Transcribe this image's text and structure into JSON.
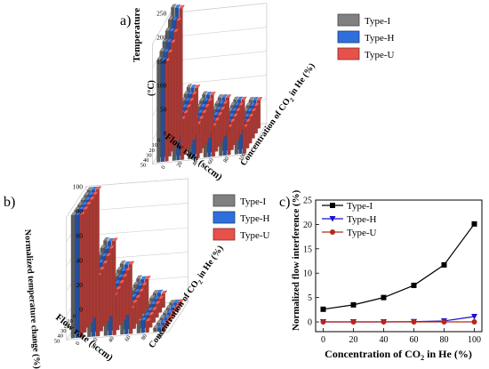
{
  "panels": {
    "a": {
      "label": "a)",
      "ylabel": "Temperature (°C)",
      "xlabel": "Flow rate (sccm)",
      "zlabel": "Concentration of CO2 in He (%)",
      "z_ticks": [
        "0",
        "50",
        "100",
        "150",
        "200",
        "250"
      ],
      "flow_ticks": [
        "0",
        "10",
        "20",
        "30",
        "40",
        "50"
      ],
      "conc_ticks": [
        "0",
        "20",
        "40",
        "60",
        "80",
        "100"
      ],
      "legend": [
        "Type-I",
        "Type-H",
        "Type-U"
      ]
    },
    "b": {
      "label": "b)",
      "ylabel": "Normalized temperature change (%)",
      "xlabel": "Flow rate (sccm)",
      "zlabel": "Concentration of CO2 in He (%)",
      "z_ticks": [
        "0",
        "20",
        "40",
        "60",
        "80",
        "100"
      ],
      "flow_ticks": [
        "0",
        "10",
        "20",
        "30",
        "40",
        "50"
      ],
      "conc_ticks": [
        "0",
        "20",
        "40",
        "60",
        "80",
        "100"
      ],
      "legend": [
        "Type-I",
        "Type-H",
        "Type-U"
      ]
    },
    "c": {
      "label": "c)",
      "ylabel": "Normalized flow interference (%)",
      "xlabel": "Concentration of CO2 in He (%)",
      "legend": [
        "Type-I",
        "Type-H",
        "Type-U"
      ]
    }
  },
  "colors": {
    "Type-I": "#808080",
    "Type-H": "#2f6fdc",
    "Type-U": "#e8504a"
  },
  "chart_data": [
    {
      "type": "bar",
      "title": "",
      "xlabel": "Flow rate (sccm)",
      "ylabel": "Temperature (°C)",
      "zlabel": "Concentration of CO2 in He (%)",
      "flow_rates": [
        0,
        10,
        20,
        30,
        40,
        50
      ],
      "concentrations": [
        0,
        20,
        40,
        60,
        80,
        100
      ],
      "zlim": [
        0,
        250
      ],
      "series": [
        {
          "name": "Type-I",
          "values": [
            [
              270,
              255,
              242,
              230,
              220,
              212
            ],
            [
              100,
              96,
              93,
              90,
              88,
              86
            ],
            [
              82,
              79,
              77,
              75,
              73,
              72
            ],
            [
              72,
              70,
              68,
              67,
              66,
              65
            ],
            [
              64,
              63,
              62,
              61,
              60,
              59
            ],
            [
              60,
              59,
              58,
              57,
              57,
              56
            ]
          ]
        },
        {
          "name": "Type-H",
          "values": [
            [
              268,
              253,
              240,
              228,
              218,
              210
            ],
            [
              98,
              95,
              92,
              89,
              87,
              85
            ],
            [
              80,
              78,
              76,
              74,
              72,
              71
            ],
            [
              71,
              69,
              67,
              66,
              65,
              64
            ],
            [
              63,
              62,
              61,
              60,
              59,
              58
            ],
            [
              59,
              58,
              57,
              56,
              56,
              55
            ]
          ]
        },
        {
          "name": "Type-U",
          "values": [
            [
              266,
              251,
              238,
              226,
              216,
              208
            ],
            [
              97,
              94,
              91,
              88,
              86,
              84
            ],
            [
              79,
              77,
              75,
              73,
              71,
              70
            ],
            [
              70,
              68,
              66,
              65,
              64,
              63
            ],
            [
              62,
              61,
              60,
              59,
              58,
              57
            ],
            [
              58,
              57,
              56,
              55,
              55,
              54
            ]
          ]
        }
      ]
    },
    {
      "type": "bar",
      "title": "",
      "xlabel": "Flow rate (sccm)",
      "ylabel": "Normalized temperature change (%)",
      "zlabel": "Concentration of CO2 in He (%)",
      "flow_rates": [
        0,
        10,
        20,
        30,
        40,
        50
      ],
      "concentrations": [
        0,
        20,
        40,
        60,
        80,
        100
      ],
      "zlim": [
        0,
        100
      ],
      "series": [
        {
          "name": "Type-I",
          "values": [
            [
              100,
              100,
              100,
              100,
              100,
              100
            ],
            [
              58,
              56,
              54,
              52,
              51,
              50
            ],
            [
              38,
              37,
              36,
              35,
              34,
              33
            ],
            [
              25,
              24,
              23,
              22,
              22,
              21
            ],
            [
              12,
              12,
              11,
              11,
              10,
              10
            ],
            [
              3,
              3,
              3,
              3,
              3,
              3
            ]
          ]
        },
        {
          "name": "Type-H",
          "values": [
            [
              100,
              100,
              100,
              100,
              100,
              100
            ],
            [
              57,
              55,
              53,
              52,
              50,
              49
            ],
            [
              37,
              36,
              35,
              34,
              33,
              32
            ],
            [
              24,
              23,
              22,
              22,
              21,
              20
            ],
            [
              12,
              11,
              11,
              10,
              10,
              10
            ],
            [
              3,
              3,
              3,
              3,
              3,
              3
            ]
          ]
        },
        {
          "name": "Type-U",
          "values": [
            [
              100,
              100,
              100,
              100,
              100,
              100
            ],
            [
              57,
              55,
              53,
              51,
              50,
              49
            ],
            [
              37,
              36,
              35,
              34,
              33,
              32
            ],
            [
              24,
              23,
              22,
              21,
              21,
              20
            ],
            [
              11,
              11,
              11,
              10,
              10,
              9
            ],
            [
              3,
              3,
              3,
              3,
              3,
              3
            ]
          ]
        }
      ]
    },
    {
      "type": "line",
      "title": "",
      "xlabel": "Concentration of CO2 in He (%)",
      "ylabel": "Normalized flow interference (%)",
      "x": [
        0,
        20,
        40,
        60,
        80,
        100
      ],
      "xlim": [
        -5,
        105
      ],
      "ylim": [
        -2,
        25
      ],
      "xticks": [
        0,
        20,
        40,
        60,
        80,
        100
      ],
      "yticks": [
        0,
        5,
        10,
        15,
        20,
        25
      ],
      "legend_position": "top-left",
      "series": [
        {
          "name": "Type-I",
          "marker": "square",
          "values": [
            2.6,
            3.5,
            5.0,
            7.5,
            11.7,
            20.1
          ]
        },
        {
          "name": "Type-H",
          "marker": "triangle-down",
          "values": [
            0.0,
            0.0,
            0.0,
            0.05,
            0.2,
            1.1
          ]
        },
        {
          "name": "Type-U",
          "marker": "circle",
          "values": [
            0.0,
            0.0,
            0.0,
            0.0,
            0.0,
            0.0
          ]
        }
      ]
    }
  ]
}
